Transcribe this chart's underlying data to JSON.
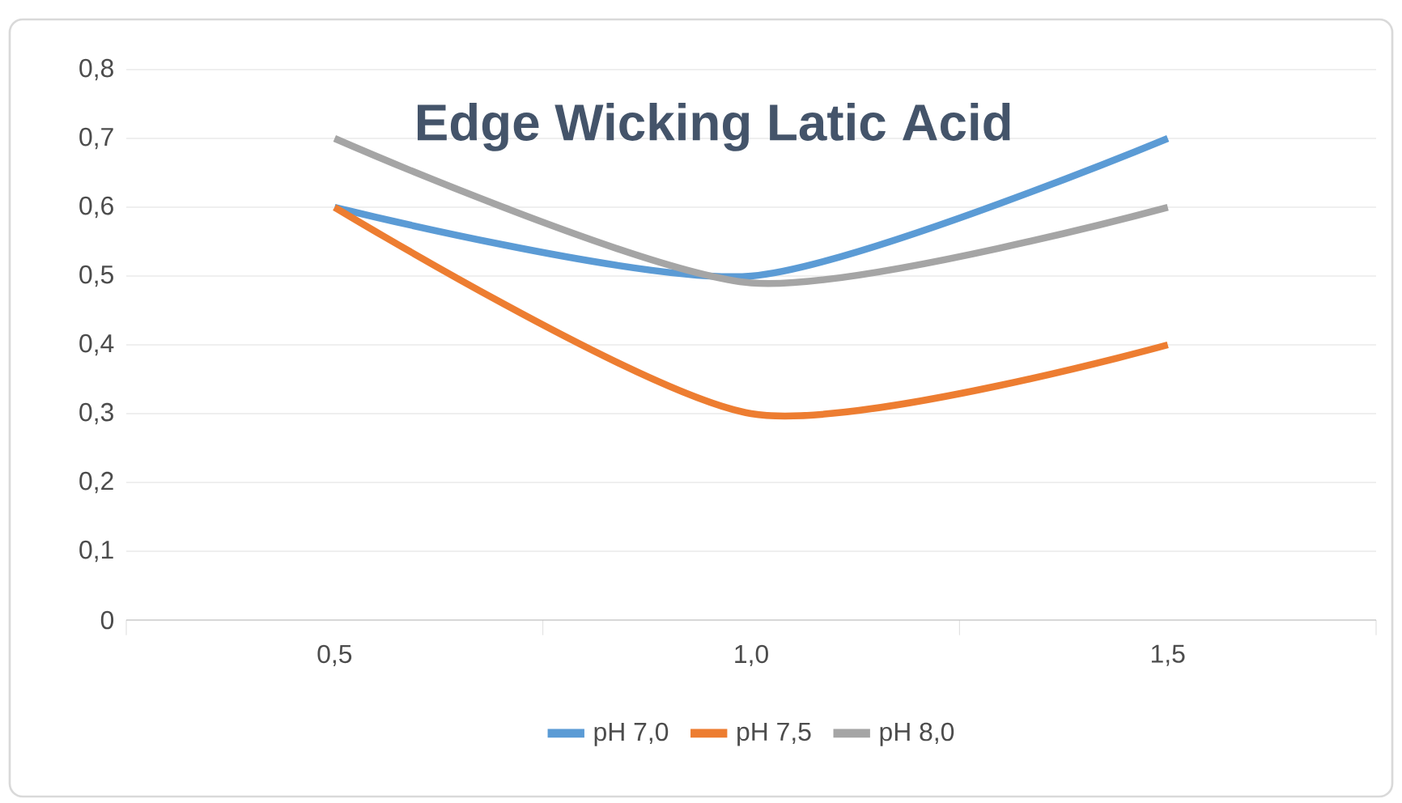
{
  "chart_data": {
    "type": "line",
    "title": "Edge Wicking Latic Acid",
    "categories": [
      "0,5",
      "1,0",
      "1,5"
    ],
    "series": [
      {
        "name": "pH 7,0",
        "color": "#5b9bd5",
        "values": [
          0.6,
          0.5,
          0.7
        ]
      },
      {
        "name": "pH 7,5",
        "color": "#ed7d31",
        "values": [
          0.6,
          0.3,
          0.4
        ]
      },
      {
        "name": "pH 8,0",
        "color": "#a5a5a5",
        "values": [
          0.7,
          0.49,
          0.6
        ]
      }
    ],
    "ylim": [
      0,
      0.8
    ],
    "yticks": [
      {
        "value": 0,
        "label": "0"
      },
      {
        "value": 0.1,
        "label": "0,1"
      },
      {
        "value": 0.2,
        "label": "0,2"
      },
      {
        "value": 0.3,
        "label": "0,3"
      },
      {
        "value": 0.4,
        "label": "0,4"
      },
      {
        "value": 0.5,
        "label": "0,5"
      },
      {
        "value": 0.6,
        "label": "0,6"
      },
      {
        "value": 0.7,
        "label": "0,7"
      },
      {
        "value": 0.8,
        "label": "0,8"
      }
    ],
    "grid": "y",
    "legend": "bottom",
    "line_style": "solid"
  }
}
